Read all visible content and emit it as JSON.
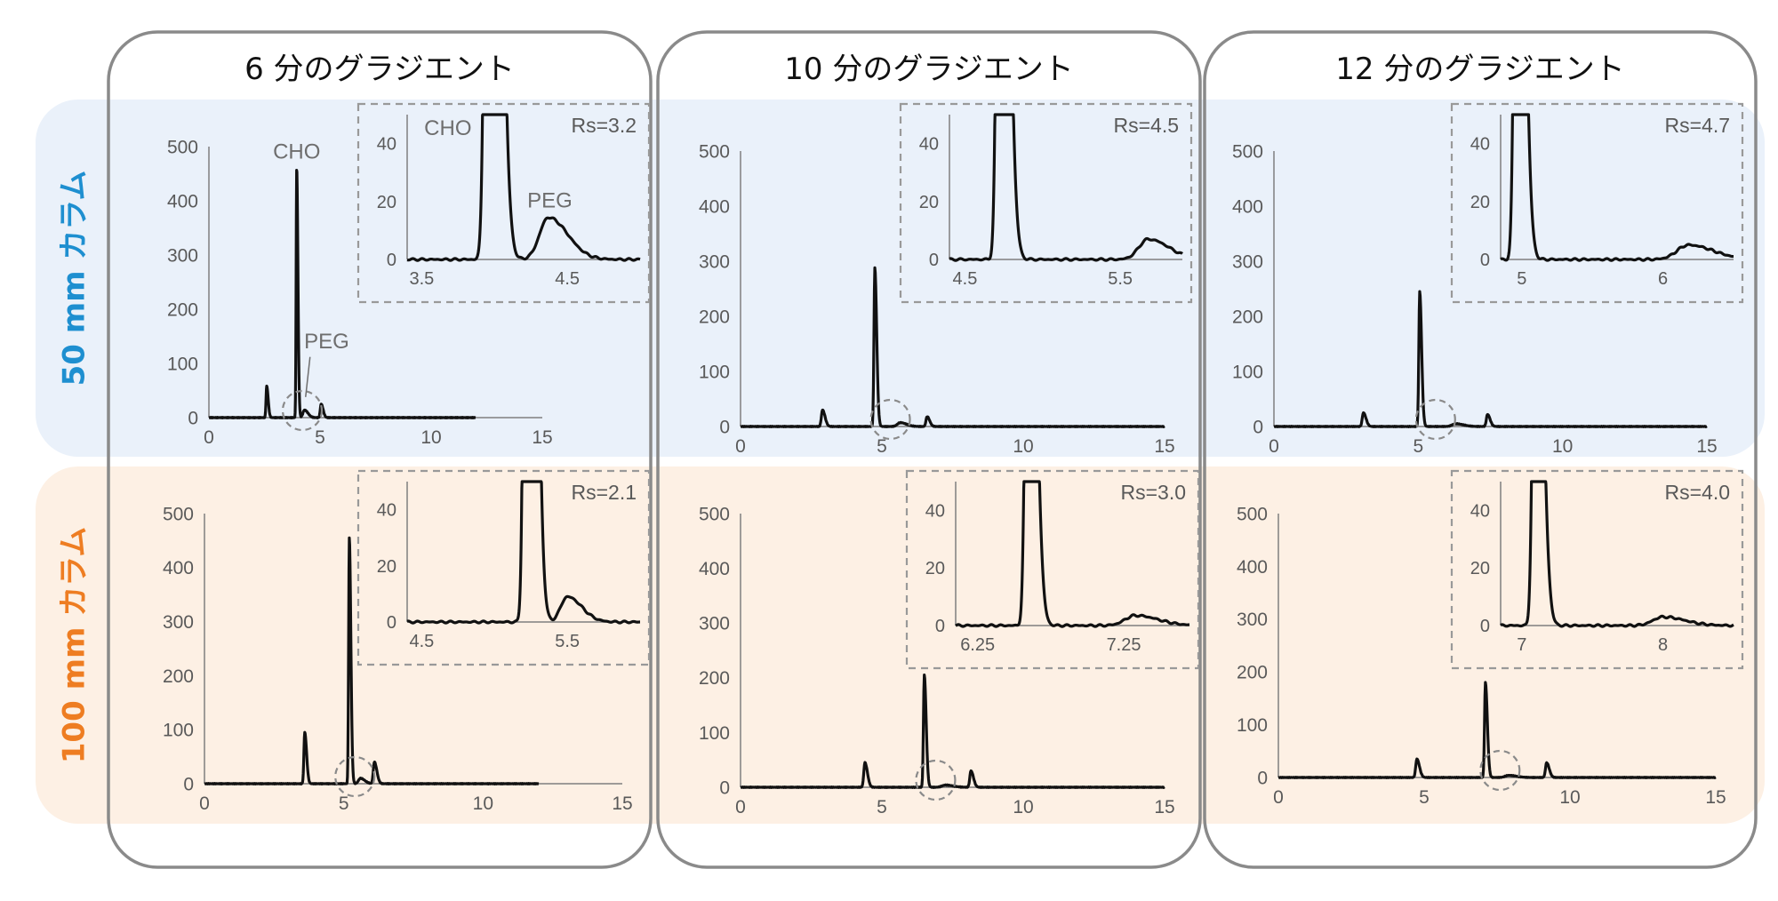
{
  "figure": {
    "gradient_titles": [
      "6 分のグラジエント",
      "10 分のグラジエント",
      "12 分のグラジエント"
    ],
    "row_labels": [
      "50 mm カラム",
      "100 mm カラム"
    ],
    "colors": {
      "row_50_bg": "#eaf1fa",
      "row_100_bg": "#fdf0e4",
      "row_50_text": "#1e8fd0",
      "row_100_text": "#ee7d22",
      "trace": "#111111",
      "frame": "#8a8a8a",
      "axis_text": "#595959",
      "inset_border": "#999999"
    }
  },
  "chart_data": [
    {
      "type": "line",
      "id": "p-6min-50mm",
      "gradient": "6 分のグラジエント",
      "column": "50 mm カラム",
      "x_ticks": [
        0,
        5,
        10,
        15
      ],
      "y_ticks": [
        0,
        100,
        200,
        300,
        400,
        500
      ],
      "xlim": [
        0,
        15
      ],
      "ylim": [
        0,
        500
      ],
      "x_end": 12,
      "peaks": [
        {
          "t": 2.6,
          "h": 58,
          "w": 0.03
        },
        {
          "t": 3.95,
          "h": 460,
          "w": 0.025
        },
        {
          "t": 4.3,
          "h": 14,
          "w": 0.07
        },
        {
          "t": 5.05,
          "h": 25,
          "w": 0.04
        }
      ],
      "labels": [
        {
          "text": "CHO",
          "x": 3.95,
          "y": 478
        },
        {
          "text": "PEG",
          "x": 5.3,
          "y": 128
        }
      ],
      "circle_t": 4.2,
      "inset": {
        "x_ticks": [
          3.5,
          4.5
        ],
        "x_tick_labels": [
          "3.5",
          "4.5"
        ],
        "y_ticks": [
          0,
          20,
          40
        ],
        "xlim": [
          3.4,
          5.0
        ],
        "ylim": [
          0,
          50
        ],
        "rs": "Rs=3.2",
        "peaks": [
          {
            "t": 3.97,
            "h": 460,
            "w": 0.025
          },
          {
            "t": 4.37,
            "h": 14.5,
            "w": 0.06
          }
        ],
        "labels": [
          {
            "text": "CHO",
            "x": 3.68,
            "y": 43
          },
          {
            "text": "PEG",
            "x": 4.38,
            "y": 18
          }
        ]
      }
    },
    {
      "type": "line",
      "id": "p-10min-50mm",
      "gradient": "10 分のグラジエント",
      "column": "50 mm カラム",
      "x_ticks": [
        0,
        5,
        10,
        15
      ],
      "y_ticks": [
        0,
        100,
        200,
        300,
        400,
        500
      ],
      "xlim": [
        0,
        15
      ],
      "ylim": [
        0,
        500
      ],
      "x_end": 15,
      "peaks": [
        {
          "t": 2.9,
          "h": 30,
          "w": 0.04
        },
        {
          "t": 4.75,
          "h": 288,
          "w": 0.03
        },
        {
          "t": 5.65,
          "h": 7,
          "w": 0.1
        },
        {
          "t": 6.6,
          "h": 18,
          "w": 0.04
        }
      ],
      "labels": [],
      "circle_t": 5.3,
      "inset": {
        "x_ticks": [
          4.5,
          5.5
        ],
        "x_tick_labels": [
          "4.5",
          "5.5"
        ],
        "y_ticks": [
          0,
          20,
          40
        ],
        "xlim": [
          4.4,
          5.9
        ],
        "ylim": [
          0,
          50
        ],
        "rs": "Rs=4.5",
        "peaks": [
          {
            "t": 4.73,
            "h": 288,
            "w": 0.02
          },
          {
            "t": 5.68,
            "h": 7,
            "w": 0.06
          }
        ],
        "labels": []
      }
    },
    {
      "type": "line",
      "id": "p-12min-50mm",
      "gradient": "12 分のグラジエント",
      "column": "50 mm カラム",
      "x_ticks": [
        0,
        5,
        10,
        15
      ],
      "y_ticks": [
        0,
        100,
        200,
        300,
        400,
        500
      ],
      "xlim": [
        0,
        15
      ],
      "ylim": [
        0,
        500
      ],
      "x_end": 15,
      "peaks": [
        {
          "t": 3.1,
          "h": 25,
          "w": 0.04
        },
        {
          "t": 5.05,
          "h": 245,
          "w": 0.03
        },
        {
          "t": 6.3,
          "h": 5,
          "w": 0.12
        },
        {
          "t": 7.4,
          "h": 22,
          "w": 0.04
        }
      ],
      "labels": [],
      "circle_t": 5.6,
      "inset": {
        "x_ticks": [
          5,
          6
        ],
        "x_tick_labels": [
          "5",
          "6"
        ],
        "y_ticks": [
          0,
          20,
          40
        ],
        "xlim": [
          4.85,
          6.5
        ],
        "ylim": [
          0,
          50
        ],
        "rs": "Rs=4.7",
        "peaks": [
          {
            "t": 4.97,
            "h": 245,
            "w": 0.02
          },
          {
            "t": 6.18,
            "h": 5,
            "w": 0.08
          }
        ],
        "labels": []
      }
    },
    {
      "type": "line",
      "id": "p-6min-100mm",
      "gradient": "6 分のグラジエント",
      "column": "100 mm カラム",
      "x_ticks": [
        0,
        5,
        10,
        15
      ],
      "y_ticks": [
        0,
        100,
        200,
        300,
        400,
        500
      ],
      "xlim": [
        0,
        15
      ],
      "ylim": [
        0,
        500
      ],
      "x_end": 12,
      "peaks": [
        {
          "t": 3.6,
          "h": 95,
          "w": 0.03
        },
        {
          "t": 5.2,
          "h": 455,
          "w": 0.025
        },
        {
          "t": 5.6,
          "h": 10,
          "w": 0.07
        },
        {
          "t": 6.1,
          "h": 40,
          "w": 0.04
        }
      ],
      "labels": [],
      "circle_t": 5.4,
      "inset": {
        "x_ticks": [
          4.5,
          5.5
        ],
        "x_tick_labels": [
          "4.5",
          "5.5"
        ],
        "y_ticks": [
          0,
          20,
          40
        ],
        "xlim": [
          4.4,
          6.0
        ],
        "ylim": [
          0,
          50
        ],
        "rs": "Rs=2.1",
        "peaks": [
          {
            "t": 5.23,
            "h": 455,
            "w": 0.02
          },
          {
            "t": 5.5,
            "h": 9,
            "w": 0.045
          }
        ],
        "labels": []
      }
    },
    {
      "type": "line",
      "id": "p-10min-100mm",
      "gradient": "10 分のグラジエント",
      "column": "100 mm カラム",
      "x_ticks": [
        0,
        5,
        10,
        15
      ],
      "y_ticks": [
        0,
        100,
        200,
        300,
        400,
        500
      ],
      "xlim": [
        0,
        15
      ],
      "ylim": [
        0,
        500
      ],
      "x_end": 15,
      "peaks": [
        {
          "t": 4.4,
          "h": 45,
          "w": 0.04
        },
        {
          "t": 6.5,
          "h": 205,
          "w": 0.03
        },
        {
          "t": 7.25,
          "h": 4,
          "w": 0.12
        },
        {
          "t": 8.15,
          "h": 30,
          "w": 0.04
        }
      ],
      "labels": [],
      "circle_t": 6.9,
      "inset": {
        "x_ticks": [
          6.25,
          7.25
        ],
        "x_tick_labels": [
          "6.25",
          "7.25"
        ],
        "y_ticks": [
          0,
          20,
          40
        ],
        "xlim": [
          6.1,
          7.7
        ],
        "ylim": [
          0,
          50
        ],
        "rs": "Rs=3.0",
        "peaks": [
          {
            "t": 6.6,
            "h": 205,
            "w": 0.02
          },
          {
            "t": 7.33,
            "h": 3.5,
            "w": 0.07
          }
        ],
        "labels": []
      }
    },
    {
      "type": "line",
      "id": "p-12min-100mm",
      "gradient": "12 分のグラジエント",
      "column": "100 mm カラム",
      "x_ticks": [
        0,
        5,
        10,
        15
      ],
      "y_ticks": [
        0,
        100,
        200,
        300,
        400,
        500
      ],
      "xlim": [
        0,
        15
      ],
      "ylim": [
        0,
        500
      ],
      "x_end": 15,
      "peaks": [
        {
          "t": 4.75,
          "h": 35,
          "w": 0.04
        },
        {
          "t": 7.1,
          "h": 180,
          "w": 0.03
        },
        {
          "t": 7.9,
          "h": 4,
          "w": 0.12
        },
        {
          "t": 9.2,
          "h": 28,
          "w": 0.04
        }
      ],
      "labels": [],
      "circle_t": 7.6,
      "inset": {
        "x_ticks": [
          7,
          8
        ],
        "x_tick_labels": [
          "7",
          "8"
        ],
        "y_ticks": [
          0,
          20,
          40
        ],
        "xlim": [
          6.85,
          8.5
        ],
        "ylim": [
          0,
          50
        ],
        "rs": "Rs=4.0",
        "peaks": [
          {
            "t": 7.1,
            "h": 180,
            "w": 0.02
          },
          {
            "t": 8.0,
            "h": 3,
            "w": 0.07
          }
        ],
        "labels": []
      }
    }
  ]
}
